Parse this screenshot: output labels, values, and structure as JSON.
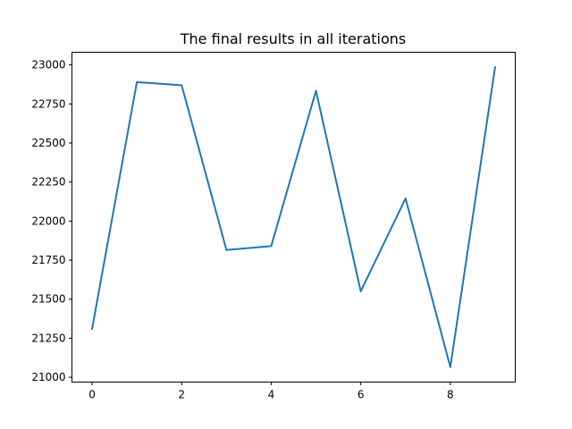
{
  "chart_data": {
    "type": "line",
    "title": "The final results in all iterations",
    "xlabel": "",
    "ylabel": "",
    "x": [
      0,
      1,
      2,
      3,
      4,
      5,
      6,
      7,
      8,
      9
    ],
    "series": [
      {
        "values": [
          21310,
          22890,
          22870,
          21815,
          21840,
          22835,
          21550,
          22145,
          21065,
          22985
        ],
        "color": "#1f77b4"
      }
    ],
    "xlim": [
      -0.45,
      9.45
    ],
    "ylim": [
      20969,
      23081
    ],
    "xticks": [
      0,
      2,
      4,
      6,
      8
    ],
    "yticks": [
      21000,
      21250,
      21500,
      21750,
      22000,
      22250,
      22500,
      22750,
      23000
    ],
    "grid": false,
    "legend": "none"
  }
}
